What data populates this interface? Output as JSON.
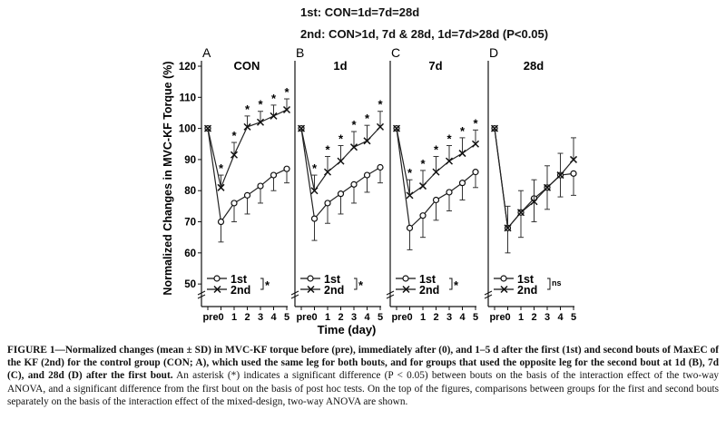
{
  "header": {
    "line1": "1st: CON=1d=7d=28d",
    "line2": "2nd: CON>1d, 7d & 28d, 1d=7d>28d (P<0.05)"
  },
  "caption": {
    "label": "FIGURE 1",
    "title": "—Normalized changes (mean ± SD) in MVC-KF torque before (pre), immediately after (0), and 1–5 d after the first (1st) and second bouts of MaxEC of the KF (2nd) for the control group (CON; A), which used the same leg for both bouts, and for groups that used the opposite leg for the second bout at 1d (B), 7d (C), and 28d (D) after the first bout.",
    "body": "An asterisk (*) indicates a significant difference (P < 0.05) between bouts on the basis of the interaction effect of the two-way ANOVA, and a significant difference from the first bout on the basis of post hoc tests. On the top of the figures, comparisons between groups for the first and second bouts separately on the basis of the interaction effect of the mixed-design, two-way ANOVA are shown."
  },
  "chart_data": {
    "type": "line",
    "ylabel": "Normalized Changes in MVC-KF Torque (%)",
    "xlabel": "Time (day)",
    "ylim": [
      48,
      120
    ],
    "yticks": [
      50,
      60,
      70,
      80,
      90,
      100,
      110,
      120
    ],
    "x": [
      "pre",
      "0",
      "1",
      "2",
      "3",
      "4",
      "5"
    ],
    "panels": [
      {
        "letter": "A",
        "group": "CON",
        "legend_mark": "*",
        "series": [
          {
            "name": "1st",
            "marker": "circle",
            "values": [
              100,
              70,
              76,
              78.5,
              81.5,
              85,
              87
            ],
            "sd": [
              0,
              6.5,
              6,
              6,
              5.5,
              5,
              4.5
            ]
          },
          {
            "name": "2nd",
            "marker": "cross",
            "values": [
              100,
              81,
              91.5,
              100.5,
              102,
              104,
              106
            ],
            "sd": [
              0,
              4,
              4,
              3.5,
              3.5,
              3.5,
              3.5
            ]
          }
        ],
        "asterisks": [
          "",
          "*",
          "*",
          "*",
          "*",
          "*",
          "*"
        ]
      },
      {
        "letter": "B",
        "group": "1d",
        "legend_mark": "*",
        "series": [
          {
            "name": "1st",
            "marker": "circle",
            "values": [
              100,
              71,
              76,
              79,
              82,
              85,
              87.5
            ],
            "sd": [
              0,
              7,
              6.5,
              6.5,
              6,
              5.5,
              5
            ]
          },
          {
            "name": "2nd",
            "marker": "cross",
            "values": [
              100,
              80,
              86,
              89.5,
              94,
              96,
              100.5
            ],
            "sd": [
              0,
              5,
              5,
              5,
              5,
              5,
              5
            ]
          }
        ],
        "asterisks": [
          "",
          "*",
          "*",
          "*",
          "*",
          "*",
          "*"
        ]
      },
      {
        "letter": "C",
        "group": "7d",
        "legend_mark": "*",
        "series": [
          {
            "name": "1st",
            "marker": "circle",
            "values": [
              100,
              68,
              72,
              77,
              79.5,
              82.5,
              86
            ],
            "sd": [
              0,
              7,
              7,
              6.5,
              6,
              5.5,
              5
            ]
          },
          {
            "name": "2nd",
            "marker": "cross",
            "values": [
              100,
              78.5,
              81.5,
              86,
              89.5,
              92,
              95
            ],
            "sd": [
              0,
              5,
              5,
              5,
              5,
              5,
              4.5
            ]
          }
        ],
        "asterisks": [
          "",
          "*",
          "*",
          "*",
          "*",
          "*",
          "*"
        ]
      },
      {
        "letter": "D",
        "group": "28d",
        "legend_mark": "ns",
        "series": [
          {
            "name": "1st",
            "marker": "circle",
            "values": [
              100,
              68,
              73,
              77.5,
              81,
              85,
              85.5
            ],
            "sd": [
              0,
              8,
              8,
              7.5,
              7,
              7,
              7
            ]
          },
          {
            "name": "2nd",
            "marker": "cross",
            "values": [
              100,
              68,
              73,
              76.5,
              81,
              85,
              90
            ],
            "sd": [
              0,
              7,
              7,
              7,
              7,
              7,
              7
            ]
          }
        ],
        "asterisks": [
          "",
          "",
          "",
          "",
          "",
          "",
          ""
        ]
      }
    ]
  }
}
